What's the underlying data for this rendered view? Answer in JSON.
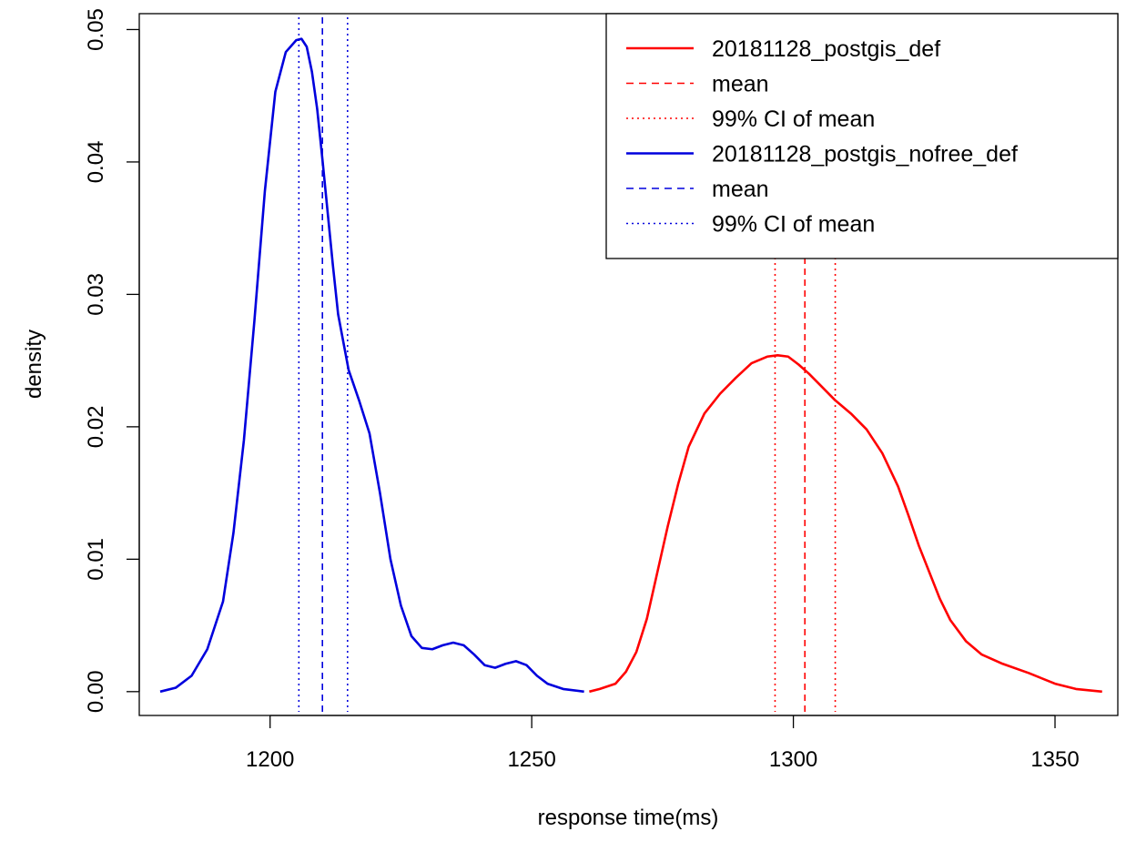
{
  "chart_data": {
    "type": "line",
    "title": "",
    "xlabel": "response time(ms)",
    "ylabel": "density",
    "xlim": [
      1175,
      1362
    ],
    "ylim": [
      -0.0018,
      0.0512
    ],
    "x_ticks": [
      1200,
      1250,
      1300,
      1350
    ],
    "x_tick_labels": [
      "1200",
      "1250",
      "1300",
      "1350"
    ],
    "y_ticks": [
      0.0,
      0.01,
      0.02,
      0.03,
      0.04,
      0.05
    ],
    "y_tick_labels": [
      "0.00",
      "0.01",
      "0.02",
      "0.03",
      "0.04",
      "0.05"
    ],
    "grid": false,
    "legend_position": "top-right",
    "series": [
      {
        "name": "20181128_postgis_def",
        "color": "#ff0000",
        "x": [
          1261,
          1263,
          1266,
          1268,
          1270,
          1272,
          1274,
          1276,
          1278,
          1280,
          1283,
          1286,
          1289,
          1292,
          1295,
          1297,
          1299,
          1301,
          1303,
          1305,
          1308,
          1311,
          1314,
          1317,
          1320,
          1322,
          1324,
          1326,
          1328,
          1330,
          1333,
          1336,
          1340,
          1345,
          1350,
          1354,
          1359
        ],
        "y": [
          0.0,
          0.0002,
          0.0006,
          0.0015,
          0.003,
          0.0055,
          0.009,
          0.0125,
          0.0157,
          0.0185,
          0.021,
          0.0225,
          0.0237,
          0.0248,
          0.0253,
          0.0254,
          0.0253,
          0.0247,
          0.024,
          0.0232,
          0.022,
          0.021,
          0.0198,
          0.018,
          0.0155,
          0.0133,
          0.011,
          0.009,
          0.007,
          0.0054,
          0.0038,
          0.0028,
          0.0021,
          0.0014,
          0.0006,
          0.0002,
          0.0
        ]
      },
      {
        "name": "mean",
        "color": "#ff0000",
        "style": "dashed",
        "vline": 1302.2
      },
      {
        "name": "99% CI  of mean",
        "color": "#ff0000",
        "style": "dotted",
        "vlines": [
          1296.5,
          1308
        ]
      },
      {
        "name": "20181128_postgis_nofree_def",
        "color": "#0000dd",
        "x": [
          1179,
          1182,
          1185,
          1188,
          1191,
          1193,
          1195,
          1197,
          1199,
          1201,
          1203,
          1205,
          1206,
          1207,
          1208,
          1209,
          1210,
          1211,
          1212,
          1213,
          1215,
          1217,
          1219,
          1221,
          1223,
          1225,
          1227,
          1229,
          1231,
          1233,
          1235,
          1237,
          1239,
          1241,
          1243,
          1245,
          1247,
          1249,
          1251,
          1253,
          1256,
          1260
        ],
        "y": [
          0.0,
          0.0003,
          0.0012,
          0.0032,
          0.0068,
          0.012,
          0.019,
          0.028,
          0.0378,
          0.0453,
          0.0483,
          0.0492,
          0.0493,
          0.0487,
          0.0468,
          0.044,
          0.0402,
          0.0362,
          0.0322,
          0.0285,
          0.0243,
          0.022,
          0.0195,
          0.015,
          0.01,
          0.0065,
          0.0042,
          0.0033,
          0.0032,
          0.0035,
          0.0037,
          0.0035,
          0.0028,
          0.002,
          0.0018,
          0.0021,
          0.0023,
          0.002,
          0.0012,
          0.0006,
          0.0002,
          0.0
        ]
      },
      {
        "name": "mean",
        "color": "#0000dd",
        "style": "dashed",
        "vline": 1210
      },
      {
        "name": "99% CI  of mean",
        "color": "#0000dd",
        "style": "dotted",
        "vlines": [
          1205.5,
          1214.8
        ]
      }
    ]
  }
}
